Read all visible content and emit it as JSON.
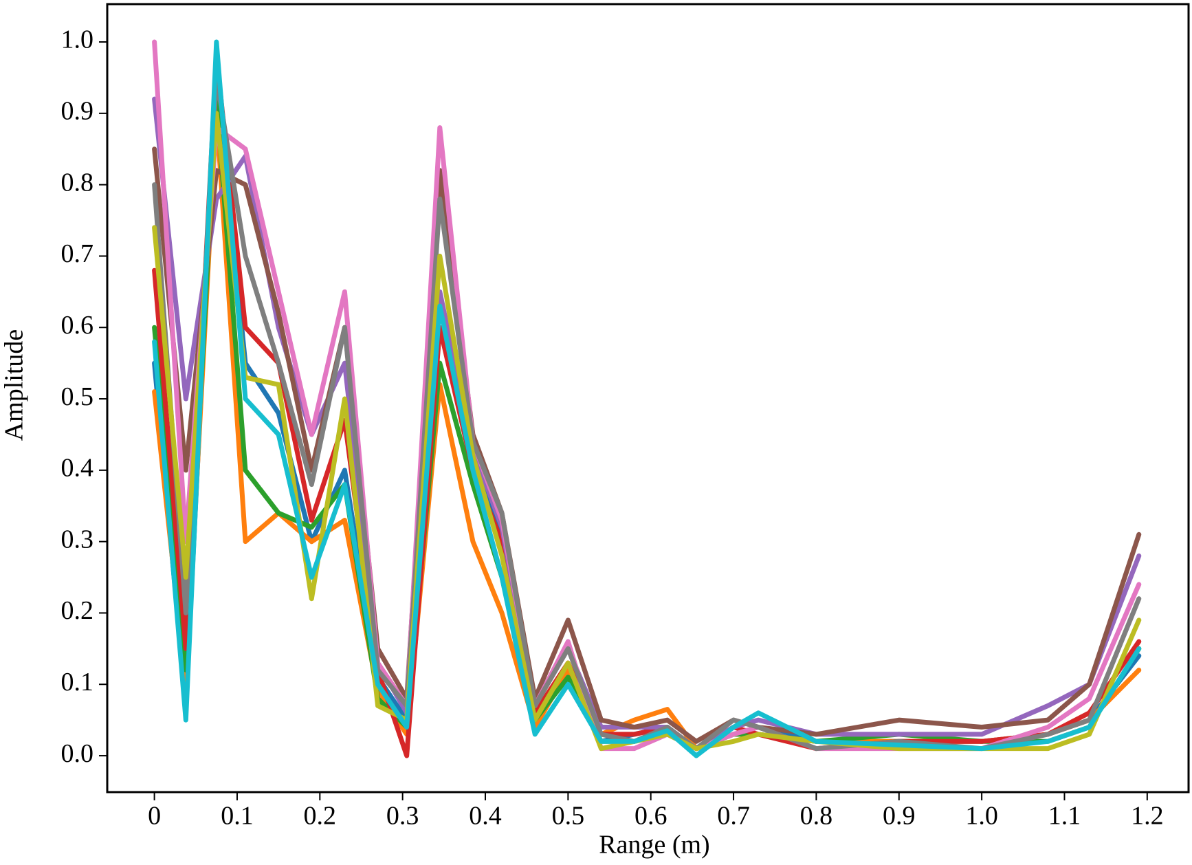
{
  "chart_data": {
    "type": "line",
    "xlabel": "Range (m)",
    "ylabel": "Amplitude",
    "xlim": [
      -0.057,
      1.25
    ],
    "ylim": [
      -0.051,
      1.053
    ],
    "xticks": [
      0,
      0.1,
      0.2,
      0.3,
      0.4,
      0.5,
      0.6,
      0.7,
      0.8,
      0.9,
      {
        "value": 1,
        "label": "1.0"
      },
      1.1,
      1.2
    ],
    "yticks": [
      {
        "value": 0,
        "label": "0.0"
      },
      0.1,
      0.2,
      0.3,
      0.4,
      0.5,
      0.6,
      0.7,
      0.8,
      0.9,
      {
        "value": 1,
        "label": "1.0"
      }
    ],
    "x": [
      0,
      0.038,
      0.075,
      0.11,
      0.15,
      0.19,
      0.23,
      0.27,
      0.305,
      0.345,
      0.385,
      0.42,
      0.46,
      0.5,
      0.54,
      0.58,
      0.62,
      0.655,
      0.7,
      0.73,
      0.8,
      0.9,
      1.0,
      1.08,
      1.13,
      1.19
    ],
    "series": [
      {
        "color": "#1f77b4",
        "values": [
          0.55,
          0.07,
          0.95,
          0.55,
          0.48,
          0.3,
          0.4,
          0.11,
          0.05,
          0.6,
          0.42,
          0.3,
          0.05,
          0.11,
          0.02,
          0.03,
          0.04,
          0.01,
          0.03,
          0.04,
          0.02,
          0.02,
          0.02,
          0.03,
          0.05,
          0.14
        ]
      },
      {
        "color": "#ff7f0e",
        "values": [
          0.51,
          0.1,
          0.9,
          0.3,
          0.34,
          0.3,
          0.33,
          0.09,
          0.03,
          0.52,
          0.3,
          0.2,
          0.04,
          0.12,
          0.03,
          0.05,
          0.065,
          0.01,
          0.03,
          0.03,
          0.02,
          0.02,
          0.02,
          0.03,
          0.05,
          0.12
        ]
      },
      {
        "color": "#2ca02c",
        "values": [
          0.6,
          0.12,
          0.92,
          0.4,
          0.34,
          0.32,
          0.38,
          0.08,
          0.04,
          0.55,
          0.38,
          0.25,
          0.05,
          0.11,
          0.02,
          0.02,
          0.03,
          0.01,
          0.03,
          0.03,
          0.02,
          0.03,
          0.02,
          0.02,
          0.04,
          0.15
        ]
      },
      {
        "color": "#d62728",
        "values": [
          0.68,
          0.15,
          0.98,
          0.6,
          0.55,
          0.33,
          0.47,
          0.12,
          0.0,
          0.6,
          0.4,
          0.3,
          0.06,
          0.13,
          0.03,
          0.03,
          0.04,
          0.01,
          0.04,
          0.03,
          0.01,
          0.02,
          0.02,
          0.03,
          0.06,
          0.16
        ]
      },
      {
        "color": "#9467bd",
        "values": [
          0.92,
          0.5,
          0.78,
          0.84,
          0.6,
          0.45,
          0.55,
          0.13,
          0.06,
          0.65,
          0.43,
          0.32,
          0.07,
          0.15,
          0.04,
          0.04,
          0.04,
          0.01,
          0.04,
          0.05,
          0.03,
          0.03,
          0.03,
          0.07,
          0.1,
          0.28
        ]
      },
      {
        "color": "#8c564b",
        "values": [
          0.85,
          0.4,
          0.82,
          0.8,
          0.62,
          0.4,
          0.6,
          0.15,
          0.08,
          0.82,
          0.45,
          0.34,
          0.08,
          0.19,
          0.05,
          0.04,
          0.05,
          0.02,
          0.05,
          0.04,
          0.03,
          0.05,
          0.04,
          0.05,
          0.1,
          0.31
        ]
      },
      {
        "color": "#e377c2",
        "values": [
          1.0,
          0.3,
          0.88,
          0.85,
          0.65,
          0.45,
          0.65,
          0.13,
          0.07,
          0.88,
          0.44,
          0.33,
          0.07,
          0.16,
          0.01,
          0.01,
          0.03,
          0.01,
          0.03,
          0.04,
          0.01,
          0.01,
          0.01,
          0.04,
          0.08,
          0.24
        ]
      },
      {
        "color": "#7f7f7f",
        "values": [
          0.8,
          0.2,
          0.95,
          0.7,
          0.55,
          0.38,
          0.6,
          0.12,
          0.07,
          0.78,
          0.44,
          0.34,
          0.07,
          0.15,
          0.03,
          0.02,
          0.04,
          0.01,
          0.05,
          0.04,
          0.01,
          0.02,
          0.01,
          0.03,
          0.05,
          0.22
        ]
      },
      {
        "color": "#bcbd22",
        "values": [
          0.74,
          0.25,
          0.9,
          0.53,
          0.52,
          0.22,
          0.5,
          0.07,
          0.05,
          0.7,
          0.42,
          0.28,
          0.05,
          0.13,
          0.01,
          0.02,
          0.03,
          0.01,
          0.02,
          0.03,
          0.02,
          0.01,
          0.01,
          0.01,
          0.03,
          0.19
        ]
      },
      {
        "color": "#17becf",
        "values": [
          0.58,
          0.05,
          1.0,
          0.5,
          0.45,
          0.25,
          0.38,
          0.1,
          0.04,
          0.63,
          0.4,
          0.25,
          0.03,
          0.1,
          0.02,
          0.02,
          0.035,
          0.0,
          0.04,
          0.06,
          0.02,
          0.015,
          0.01,
          0.02,
          0.04,
          0.15
        ]
      }
    ]
  }
}
